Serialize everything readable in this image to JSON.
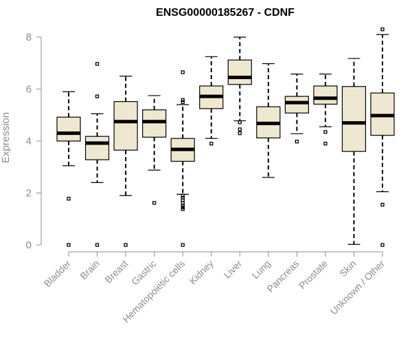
{
  "chart_data": {
    "type": "boxplot",
    "title": "ENSG00000185267 - CDNF",
    "xlabel": "",
    "ylabel": "Expression",
    "ylim": [
      0,
      8.3
    ],
    "yticks": [
      0,
      2,
      4,
      6,
      8
    ],
    "grid": false,
    "categories": [
      "Bladder",
      "Brain",
      "Breast",
      "Gastric",
      "Hematopoietic cells",
      "Kidney",
      "Liver",
      "Lung",
      "Pancreas",
      "Prostate",
      "Skin",
      "Unknown / Other"
    ],
    "boxes": [
      {
        "name": "Bladder",
        "whisker_low": 3.05,
        "q1": 4.0,
        "median": 4.3,
        "q3": 4.92,
        "whisker_high": 5.9,
        "outliers": [
          1.78,
          0.0
        ]
      },
      {
        "name": "Brain",
        "whisker_low": 2.4,
        "q1": 3.28,
        "median": 3.92,
        "q3": 4.18,
        "whisker_high": 5.05,
        "outliers": [
          6.97,
          5.72,
          0.0
        ]
      },
      {
        "name": "Breast",
        "whisker_low": 1.9,
        "q1": 3.65,
        "median": 4.75,
        "q3": 5.52,
        "whisker_high": 6.5,
        "outliers": [
          0.0
        ]
      },
      {
        "name": "Gastric",
        "whisker_low": 2.88,
        "q1": 4.15,
        "median": 4.75,
        "q3": 5.2,
        "whisker_high": 5.75,
        "outliers": [
          1.62
        ]
      },
      {
        "name": "Hematopoietic cells",
        "whisker_low": 1.95,
        "q1": 3.22,
        "median": 3.68,
        "q3": 4.1,
        "whisker_high": 5.4,
        "outliers": [
          6.65,
          5.58,
          5.5,
          1.9,
          1.82,
          1.72,
          1.62,
          1.52,
          1.45,
          1.38,
          0.0
        ]
      },
      {
        "name": "Kidney",
        "whisker_low": 4.1,
        "q1": 5.25,
        "median": 5.72,
        "q3": 6.12,
        "whisker_high": 7.25,
        "outliers": [
          3.9
        ]
      },
      {
        "name": "Liver",
        "whisker_low": 4.78,
        "q1": 6.18,
        "median": 6.45,
        "q3": 7.12,
        "whisker_high": 8.0,
        "outliers": [
          4.72,
          4.45,
          4.3
        ]
      },
      {
        "name": "Lung",
        "whisker_low": 2.6,
        "q1": 4.12,
        "median": 4.68,
        "q3": 5.32,
        "whisker_high": 6.98,
        "outliers": []
      },
      {
        "name": "Pancreas",
        "whisker_low": 4.28,
        "q1": 5.08,
        "median": 5.48,
        "q3": 5.72,
        "whisker_high": 6.58,
        "outliers": [
          3.98
        ]
      },
      {
        "name": "Prostate",
        "whisker_low": 4.55,
        "q1": 5.42,
        "median": 5.65,
        "q3": 6.12,
        "whisker_high": 6.58,
        "outliers": [
          4.35,
          3.9
        ]
      },
      {
        "name": "Skin",
        "whisker_low": 0.02,
        "q1": 3.6,
        "median": 4.7,
        "q3": 6.1,
        "whisker_high": 7.18,
        "outliers": []
      },
      {
        "name": "Unknown / Other",
        "whisker_low": 2.05,
        "q1": 4.22,
        "median": 4.98,
        "q3": 5.85,
        "whisker_high": 8.1,
        "outliers": [
          8.3,
          1.55,
          0.0
        ]
      }
    ]
  }
}
